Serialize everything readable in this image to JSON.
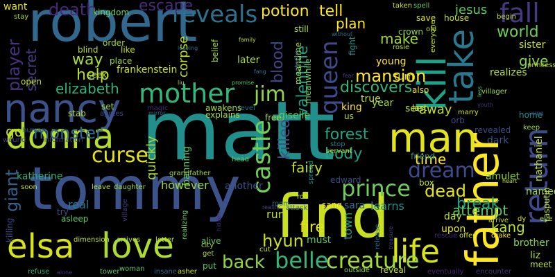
{
  "words": [
    {
      "text": "robert",
      "color": "#31688e",
      "vertical": false
    },
    {
      "text": "matt",
      "color": "#21908d",
      "vertical": false
    },
    {
      "text": "tommy",
      "color": "#3b528b",
      "vertical": false
    },
    {
      "text": "find",
      "color": "#c8e020",
      "vertical": false
    },
    {
      "text": "father",
      "color": "#fde725",
      "vertical": true
    },
    {
      "text": "nancy",
      "color": "#3b528b",
      "vertical": false
    },
    {
      "text": "donna",
      "color": "#b5de2b",
      "vertical": false
    },
    {
      "text": "elsa",
      "color": "#d8e219",
      "vertical": false
    },
    {
      "text": "love",
      "color": "#addc30",
      "vertical": false
    },
    {
      "text": "life",
      "color": "#d8e219",
      "vertical": false
    },
    {
      "text": "man",
      "color": "#e5e419",
      "vertical": false
    },
    {
      "text": "mother",
      "color": "#35b779",
      "vertical": false
    },
    {
      "text": "kill",
      "color": "#1fa187",
      "vertical": true
    },
    {
      "text": "take",
      "color": "#2a788e",
      "vertical": true
    },
    {
      "text": "return",
      "color": "#3e4a89",
      "vertical": true
    },
    {
      "text": "fall",
      "color": "#443983",
      "vertical": false
    },
    {
      "text": "reveals",
      "color": "#2c728e",
      "vertical": false
    },
    {
      "text": "death",
      "color": "#482878",
      "vertical": false
    },
    {
      "text": "escape",
      "color": "#472d7b",
      "vertical": false
    },
    {
      "text": "want",
      "color": "#e5e419",
      "vertical": false
    },
    {
      "text": "player",
      "color": "#46337e",
      "vertical": true
    },
    {
      "text": "secret",
      "color": "#433e85",
      "vertical": true
    },
    {
      "text": "way",
      "color": "#a5db36",
      "vertical": false
    },
    {
      "text": "help",
      "color": "#b5de2b",
      "vertical": false
    },
    {
      "text": "elizabeth",
      "color": "#2db27d",
      "vertical": false
    },
    {
      "text": "curse",
      "color": "#e5e419",
      "vertical": false
    },
    {
      "text": "monster",
      "color": "#31688e",
      "vertical": false
    },
    {
      "text": "giant",
      "color": "#34618d",
      "vertical": true
    },
    {
      "text": "go",
      "color": "#c2df23",
      "vertical": false
    },
    {
      "text": "castle",
      "color": "#6ece58",
      "vertical": true
    },
    {
      "text": "blood",
      "color": "#414487",
      "vertical": true
    },
    {
      "text": "killed",
      "color": "#3b528b",
      "vertical": true
    },
    {
      "text": "queen",
      "color": "#3e4a89",
      "vertical": true
    },
    {
      "text": "jim",
      "color": "#90d743",
      "vertical": false
    },
    {
      "text": "mansion",
      "color": "#fde725",
      "vertical": false
    },
    {
      "text": "discovers",
      "color": "#35b779",
      "vertical": false
    },
    {
      "text": "valentine",
      "color": "#1fa187",
      "vertical": true
    },
    {
      "text": "forest",
      "color": "#20a486",
      "vertical": false
    },
    {
      "text": "dream",
      "color": "#3e4a89",
      "vertical": false
    },
    {
      "text": "prince",
      "color": "#6ece58",
      "vertical": false
    },
    {
      "text": "dead",
      "color": "#e5e419",
      "vertical": false
    },
    {
      "text": "fairy",
      "color": "#c2df23",
      "vertical": false
    },
    {
      "text": "body",
      "color": "#1fa187",
      "vertical": false
    },
    {
      "text": "time",
      "color": "#fde725",
      "vertical": false
    },
    {
      "text": "back",
      "color": "#90d743",
      "vertical": false
    },
    {
      "text": "belle",
      "color": "#35b779",
      "vertical": false
    },
    {
      "text": "creature",
      "color": "#a0da39",
      "vertical": false
    },
    {
      "text": "break",
      "color": "#20a486",
      "vertical": false
    },
    {
      "text": "attempt",
      "color": "#5ec962",
      "vertical": false
    },
    {
      "text": "kang",
      "color": "#bddf26",
      "vertical": false
    },
    {
      "text": "hyun",
      "color": "#c8e020",
      "vertical": false
    },
    {
      "text": "fire",
      "color": "#e5e419",
      "vertical": false
    },
    {
      "text": "world",
      "color": "#6ece58",
      "vertical": false
    },
    {
      "text": "give",
      "color": "#86d549",
      "vertical": false
    },
    {
      "text": "make",
      "color": "#a0da39",
      "vertical": false
    },
    {
      "text": "potion",
      "color": "#fde725",
      "vertical": false
    },
    {
      "text": "tell",
      "color": "#fde725",
      "vertical": false
    },
    {
      "text": "plan",
      "color": "#fde725",
      "vertical": false
    },
    {
      "text": "jesus",
      "color": "#5ec962",
      "vertical": false
    },
    {
      "text": "kingdom",
      "color": "#6ece58",
      "vertical": false
    },
    {
      "text": "frankenstein",
      "color": "#cae11f",
      "vertical": false
    },
    {
      "text": "corpse",
      "color": "#c2df23",
      "vertical": true
    },
    {
      "text": "quickly",
      "color": "#addc30",
      "vertical": true
    },
    {
      "text": "banning",
      "color": "#5ec962",
      "vertical": true
    },
    {
      "text": "however",
      "color": "#9bd93c",
      "vertical": false
    },
    {
      "text": "real",
      "color": "#2a788e",
      "vertical": false
    },
    {
      "text": "another",
      "color": "#3b528b",
      "vertical": false
    },
    {
      "text": "sara",
      "color": "#2c728e",
      "vertical": false
    },
    {
      "text": "learns",
      "color": "#21918c",
      "vertical": false
    },
    {
      "text": "run",
      "color": "#bddf26",
      "vertical": false
    },
    {
      "text": "town",
      "color": "#1fa187",
      "vertical": true
    },
    {
      "text": "must",
      "color": "#5ec962",
      "vertical": false
    },
    {
      "text": "alive",
      "color": "#5ec962",
      "vertical": false
    },
    {
      "text": "day",
      "color": "#bddf26",
      "vertical": false
    },
    {
      "text": "upon",
      "color": "#e5e419",
      "vertical": false
    },
    {
      "text": "named",
      "color": "#9bd93c",
      "vertical": false
    },
    {
      "text": "brother",
      "color": "#86d549",
      "vertical": false
    },
    {
      "text": "liz",
      "color": "#addc30",
      "vertical": false
    },
    {
      "text": "meet",
      "color": "#b5de2b",
      "vertical": false
    },
    {
      "text": "amulet",
      "color": "#90d743",
      "vertical": false
    },
    {
      "text": "revealed",
      "color": "#3e4a89",
      "vertical": false
    },
    {
      "text": "home",
      "color": "#21918c",
      "vertical": false
    },
    {
      "text": "away",
      "color": "#c2df23",
      "vertical": false
    },
    {
      "text": "see",
      "color": "#b5de2b",
      "vertical": false
    },
    {
      "text": "orb",
      "color": "#3e4a89",
      "vertical": false
    },
    {
      "text": "friend",
      "color": "#21918c",
      "vertical": false
    },
    {
      "text": "box",
      "color": "#c2df23",
      "vertical": false
    },
    {
      "text": "dark",
      "color": "#3b528b",
      "vertical": false
    },
    {
      "text": "king",
      "color": "#fde725",
      "vertical": false
    },
    {
      "text": "year",
      "color": "#a5db36",
      "vertical": false
    },
    {
      "text": "true",
      "color": "#c2df23",
      "vertical": false
    },
    {
      "text": "us",
      "color": "#bddf26",
      "vertical": false
    },
    {
      "text": "turn",
      "color": "#e5e419",
      "vertical": false
    },
    {
      "text": "young",
      "color": "#fde725",
      "vertical": false
    },
    {
      "text": "sister",
      "color": "#cae11f",
      "vertical": false
    },
    {
      "text": "realizes",
      "color": "#b5de2b",
      "vertical": false
    },
    {
      "text": "nathaniel",
      "color": "#c2df23",
      "vertical": true
    },
    {
      "text": "rasputin",
      "color": "#bddf26",
      "vertical": true
    },
    {
      "text": "giselle",
      "color": "#5ec962",
      "vertical": false
    },
    {
      "text": "later",
      "color": "#addc30",
      "vertical": false
    },
    {
      "text": "explains",
      "color": "#a5db36",
      "vertical": false
    },
    {
      "text": "katherine",
      "color": "#2db27d",
      "vertical": false
    },
    {
      "text": "stab",
      "color": "#bddf26",
      "vertical": false
    },
    {
      "text": "open",
      "color": "#c2df23",
      "vertical": false
    },
    {
      "text": "killing",
      "color": "#3e4a89",
      "vertical": true
    },
    {
      "text": "try",
      "color": "#3b528b",
      "vertical": false
    },
    {
      "text": "asleep",
      "color": "#5ec962",
      "vertical": false
    },
    {
      "text": "sang",
      "color": "#fde725",
      "vertical": false
    },
    {
      "text": "edward",
      "color": "#3e4a89",
      "vertical": false
    },
    {
      "text": "crown",
      "color": "#90d743",
      "vertical": false
    },
    {
      "text": "also",
      "color": "#e5e419",
      "vertical": false
    },
    {
      "text": "last",
      "color": "#cae11f",
      "vertical": false
    },
    {
      "text": "save",
      "color": "#d8e219",
      "vertical": false
    },
    {
      "text": "house",
      "color": "#cae11f",
      "vertical": false
    },
    {
      "text": "still",
      "color": "#addc30",
      "vertical": false
    },
    {
      "text": "fight",
      "color": "#21918c",
      "vertical": true
    },
    {
      "text": "meantime",
      "color": "#a5db36",
      "vertical": true
    },
    {
      "text": "meanwhile",
      "color": "#6ece58",
      "vertical": true
    },
    {
      "text": "belief",
      "color": "#a5db36",
      "vertical": true
    },
    {
      "text": "like",
      "color": "#c2df23",
      "vertical": false
    },
    {
      "text": "place",
      "color": "#a0da39",
      "vertical": false
    },
    {
      "text": "blind",
      "color": "#c2df23",
      "vertical": false
    },
    {
      "text": "seek",
      "color": "#c2df23",
      "vertical": false
    },
    {
      "text": "order",
      "color": "#a0da39",
      "vertical": false
    },
    {
      "text": "stay",
      "color": "#a0da39",
      "vertical": false
    },
    {
      "text": "free",
      "color": "#a5db36",
      "vertical": false
    },
    {
      "text": "set",
      "color": "#a5db36",
      "vertical": false
    },
    {
      "text": "agrees",
      "color": "#3b528b",
      "vertical": false
    },
    {
      "text": "awakens",
      "color": "#addc30",
      "vertical": false
    },
    {
      "text": "level",
      "color": "#2c728e",
      "vertical": false
    },
    {
      "text": "magic",
      "color": "#482878",
      "vertical": false
    },
    {
      "text": "human",
      "color": "#31688e",
      "vertical": false
    },
    {
      "text": "wound",
      "color": "#414487",
      "vertical": false
    },
    {
      "text": "information",
      "color": "#3e4a89",
      "vertical": false
    },
    {
      "text": "soon",
      "color": "#c2df23",
      "vertical": false
    },
    {
      "text": "leave",
      "color": "#bddf26",
      "vertical": false
    },
    {
      "text": "daughter",
      "color": "#a5db36",
      "vertical": false
    },
    {
      "text": "grandfather",
      "color": "#a0da39",
      "vertical": false
    },
    {
      "text": "head",
      "color": "#5ec962",
      "vertical": false
    },
    {
      "text": "dimension",
      "color": "#c2df23",
      "vertical": false
    },
    {
      "text": "arrives",
      "color": "#a5db36",
      "vertical": false
    },
    {
      "text": "letter",
      "color": "#bddf26",
      "vertical": false
    },
    {
      "text": "realizing",
      "color": "#5ec962",
      "vertical": true
    },
    {
      "text": "city",
      "color": "#addc30",
      "vertical": false
    },
    {
      "text": "get",
      "color": "#bddf26",
      "vertical": false
    },
    {
      "text": "put",
      "color": "#5ec962",
      "vertical": false
    },
    {
      "text": "tower",
      "color": "#5ec962",
      "vertical": false
    },
    {
      "text": "woman",
      "color": "#5ec962",
      "vertical": false
    },
    {
      "text": "insane",
      "color": "#31688e",
      "vertical": false
    },
    {
      "text": "asher",
      "color": "#cae11f",
      "vertical": false
    },
    {
      "text": "refuse",
      "color": "#2db27d",
      "vertical": false
    },
    {
      "text": "alone",
      "color": "#46337e",
      "vertical": false
    },
    {
      "text": "village",
      "color": "#433e85",
      "vertical": true
    },
    {
      "text": "cut",
      "color": "#cae11f",
      "vertical": false
    },
    {
      "text": "reality",
      "color": "#3e4a89",
      "vertical": false
    },
    {
      "text": "room",
      "color": "#2c728e",
      "vertical": false
    },
    {
      "text": "attack",
      "color": "#31688e",
      "vertical": false
    },
    {
      "text": "rod",
      "color": "#bddf26",
      "vertical": false
    },
    {
      "text": "spread",
      "color": "#21918c",
      "vertical": true
    },
    {
      "text": "stop",
      "color": "#2a788e",
      "vertical": false
    },
    {
      "text": "servant",
      "color": "#b5de2b",
      "vertical": false
    },
    {
      "text": "hidden",
      "color": "#482878",
      "vertical": true
    },
    {
      "text": "release",
      "color": "#31688e",
      "vertical": true
    },
    {
      "text": "treasure",
      "color": "#414487",
      "vertical": true
    },
    {
      "text": "reveal",
      "color": "#c2df23",
      "vertical": false
    },
    {
      "text": "outside",
      "color": "#90d743",
      "vertical": false
    },
    {
      "text": "eventually",
      "color": "#482878",
      "vertical": false
    },
    {
      "text": "encounter",
      "color": "#443983",
      "vertical": false
    },
    {
      "text": "rescue",
      "color": "#482878",
      "vertical": false
    },
    {
      "text": "offer",
      "color": "#d8e219",
      "vertical": false
    },
    {
      "text": "drake",
      "color": "#fde725",
      "vertical": false
    },
    {
      "text": "arrive",
      "color": "#c2df23",
      "vertical": false
    },
    {
      "text": "dy",
      "color": "#d8e219",
      "vertical": false
    },
    {
      "text": "eye",
      "color": "#a5db36",
      "vertical": false
    },
    {
      "text": "heart",
      "color": "#c2df23",
      "vertical": false
    },
    {
      "text": "villager",
      "color": "#a0da39",
      "vertical": false
    },
    {
      "text": "marry",
      "color": "#cae11f",
      "vertical": false
    },
    {
      "text": "youth",
      "color": "#46337e",
      "vertical": false
    },
    {
      "text": "keep",
      "color": "#a0da39",
      "vertical": false
    },
    {
      "text": "using",
      "color": "#3b528b",
      "vertical": false
    },
    {
      "text": "princess",
      "color": "#c2df23",
      "vertical": false
    },
    {
      "text": "everyone",
      "color": "#c2df23",
      "vertical": true
    },
    {
      "text": "old",
      "color": "#bddf26",
      "vertical": false
    },
    {
      "text": "begin",
      "color": "#c2df23",
      "vertical": false
    },
    {
      "text": "taken",
      "color": "#cae11f",
      "vertical": false
    },
    {
      "text": "spell",
      "color": "#5ec962",
      "vertical": false
    },
    {
      "text": "without",
      "color": "#2c728e",
      "vertical": false
    },
    {
      "text": "rosie",
      "color": "#bddf26",
      "vertical": false
    },
    {
      "text": "shadow",
      "color": "#3b528b",
      "vertical": true
    },
    {
      "text": "fear",
      "color": "#433e85",
      "vertical": false
    },
    {
      "text": "fang",
      "color": "#2c728e",
      "vertical": false
    },
    {
      "text": "promise",
      "color": "#5ec962",
      "vertical": false
    },
    {
      "text": "leaving",
      "color": "#2c728e",
      "vertical": false
    },
    {
      "text": "family",
      "color": "#c2df23",
      "vertical": false
    },
    {
      "text": "liu",
      "color": "#c2df23",
      "vertical": false
    },
    {
      "text": "mirror",
      "color": "#2c728e",
      "vertical": false
    },
    {
      "text": "less",
      "color": "#5ec962",
      "vertical": true
    }
  ]
}
